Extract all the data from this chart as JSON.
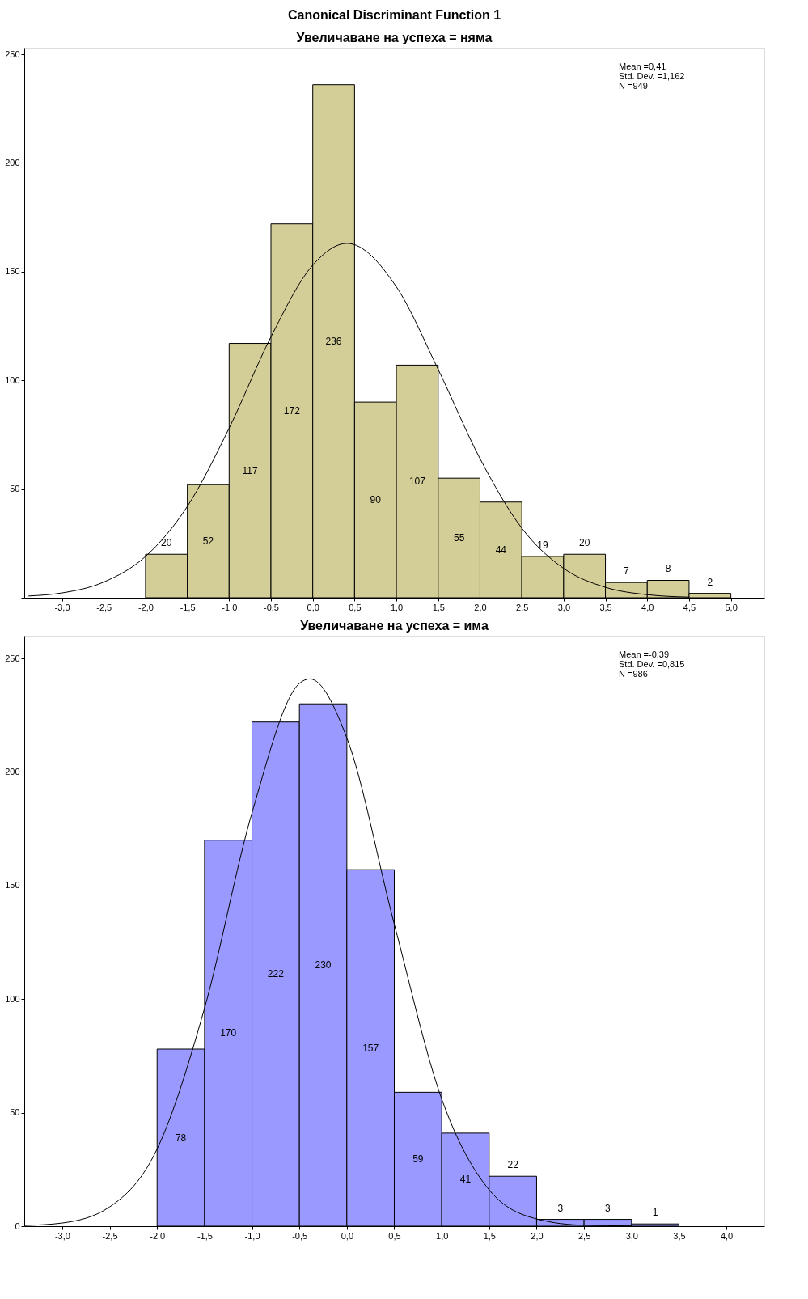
{
  "chart_data": [
    {
      "type": "histogram",
      "title": "Canonical Discriminant Function 1",
      "subtitle": "Увеличаване на успеха = няма",
      "bins": [
        -2.0,
        -1.5,
        -1.0,
        -0.5,
        0.0,
        0.5,
        1.0,
        1.5,
        2.0,
        2.5,
        3.0,
        3.5,
        4.0,
        4.5,
        5.0
      ],
      "values": [
        20,
        52,
        117,
        172,
        236,
        90,
        107,
        55,
        44,
        19,
        20,
        7,
        8,
        2
      ],
      "color": "#d3cd97",
      "value_labels": [
        "20",
        "52",
        "117",
        "172",
        "236",
        "90",
        "107",
        "55",
        "44",
        "19",
        "20",
        "7",
        "8",
        "2"
      ],
      "series": [
        {
          "type": "line",
          "color": "#000000",
          "x": [
            -3.4,
            -3.0,
            -2.5,
            -2.0,
            -1.5,
            -1.0,
            -0.5,
            0.0,
            0.41,
            1.0,
            1.5,
            2.0,
            2.5,
            3.0,
            3.5,
            4.0,
            4.5
          ],
          "values": [
            0.8,
            2.2,
            7.2,
            19,
            42,
            78,
            120,
            153,
            163,
            143,
            105,
            64,
            32,
            13.5,
            4.8,
            1.4,
            0.3
          ]
        }
      ],
      "xlim": [
        -3.45,
        5.4
      ],
      "ylim": [
        0,
        253
      ],
      "xticks": [
        {
          "value": -3,
          "label": "-3,0"
        },
        {
          "value": -2.5,
          "label": "-2,5"
        },
        {
          "value": -2,
          "label": "-2,0"
        },
        {
          "value": -1.5,
          "label": "-1,5"
        },
        {
          "value": -1,
          "label": "-1,0"
        },
        {
          "value": -0.5,
          "label": "-0,5"
        },
        {
          "value": 0,
          "label": "0,0"
        },
        {
          "value": 0.5,
          "label": "0,5"
        },
        {
          "value": 1,
          "label": "1,0"
        },
        {
          "value": 1.5,
          "label": "1,5"
        },
        {
          "value": 2,
          "label": "2,0"
        },
        {
          "value": 2.5,
          "label": "2,5"
        },
        {
          "value": 3,
          "label": "3,0"
        },
        {
          "value": 3.5,
          "label": "3,5"
        },
        {
          "value": 4,
          "label": "4,0"
        },
        {
          "value": 4.5,
          "label": "4,5"
        },
        {
          "value": 5,
          "label": "5,0"
        }
      ],
      "yticks": [
        {
          "value": 0,
          "label": null
        },
        50,
        100,
        150,
        200,
        250
      ],
      "grid": false,
      "annotations": [
        "Mean =0,41",
        "Std. Dev. =1,162",
        "N =949"
      ]
    },
    {
      "type": "histogram",
      "title": "Увеличаване на успеха = има",
      "bins": [
        -2.0,
        -1.5,
        -1.0,
        -0.5,
        0.0,
        0.5,
        1.0,
        1.5,
        2.0,
        2.5,
        3.0,
        3.5
      ],
      "values": [
        78,
        170,
        222,
        230,
        157,
        59,
        41,
        22,
        3,
        3,
        1
      ],
      "color": "#9999ff",
      "value_labels": [
        "78",
        "170",
        "222",
        "230",
        "157",
        "59",
        "41",
        "22",
        "3",
        "3",
        "1"
      ],
      "series": [
        {
          "type": "line",
          "color": "#000000",
          "x": [
            -3.4,
            -3.0,
            -2.5,
            -2.0,
            -1.5,
            -1.0,
            -0.5,
            -0.39,
            0.0,
            0.5,
            1.0,
            1.5,
            2.0,
            2.5,
            3.0
          ],
          "values": [
            0.3,
            1.4,
            8.5,
            34,
            96,
            182,
            239,
            241,
            215,
            133,
            56,
            16,
            3.2,
            0.4,
            0.1
          ]
        }
      ],
      "xlim": [
        -3.4,
        4.4
      ],
      "ylim": [
        0,
        260
      ],
      "xticks": [
        {
          "value": -3,
          "label": "-3,0"
        },
        {
          "value": -2.5,
          "label": "-2,5"
        },
        {
          "value": -2,
          "label": "-2,0"
        },
        {
          "value": -1.5,
          "label": "-1,5"
        },
        {
          "value": -1,
          "label": "-1,0"
        },
        {
          "value": -0.5,
          "label": "-0,5"
        },
        {
          "value": 0,
          "label": "0,0"
        },
        {
          "value": 0.5,
          "label": "0,5"
        },
        {
          "value": 1,
          "label": "1,0"
        },
        {
          "value": 1.5,
          "label": "1,5"
        },
        {
          "value": 2,
          "label": "2,0"
        },
        {
          "value": 2.5,
          "label": "2,5"
        },
        {
          "value": 3,
          "label": "3,0"
        },
        {
          "value": 3.5,
          "label": "3,5"
        },
        {
          "value": 4,
          "label": "4,0"
        }
      ],
      "yticks": [
        0,
        50,
        100,
        150,
        200,
        250
      ],
      "grid": false,
      "annotations": [
        "Mean =-0,39",
        "Std. Dev. =0,815",
        "N =986"
      ]
    }
  ]
}
